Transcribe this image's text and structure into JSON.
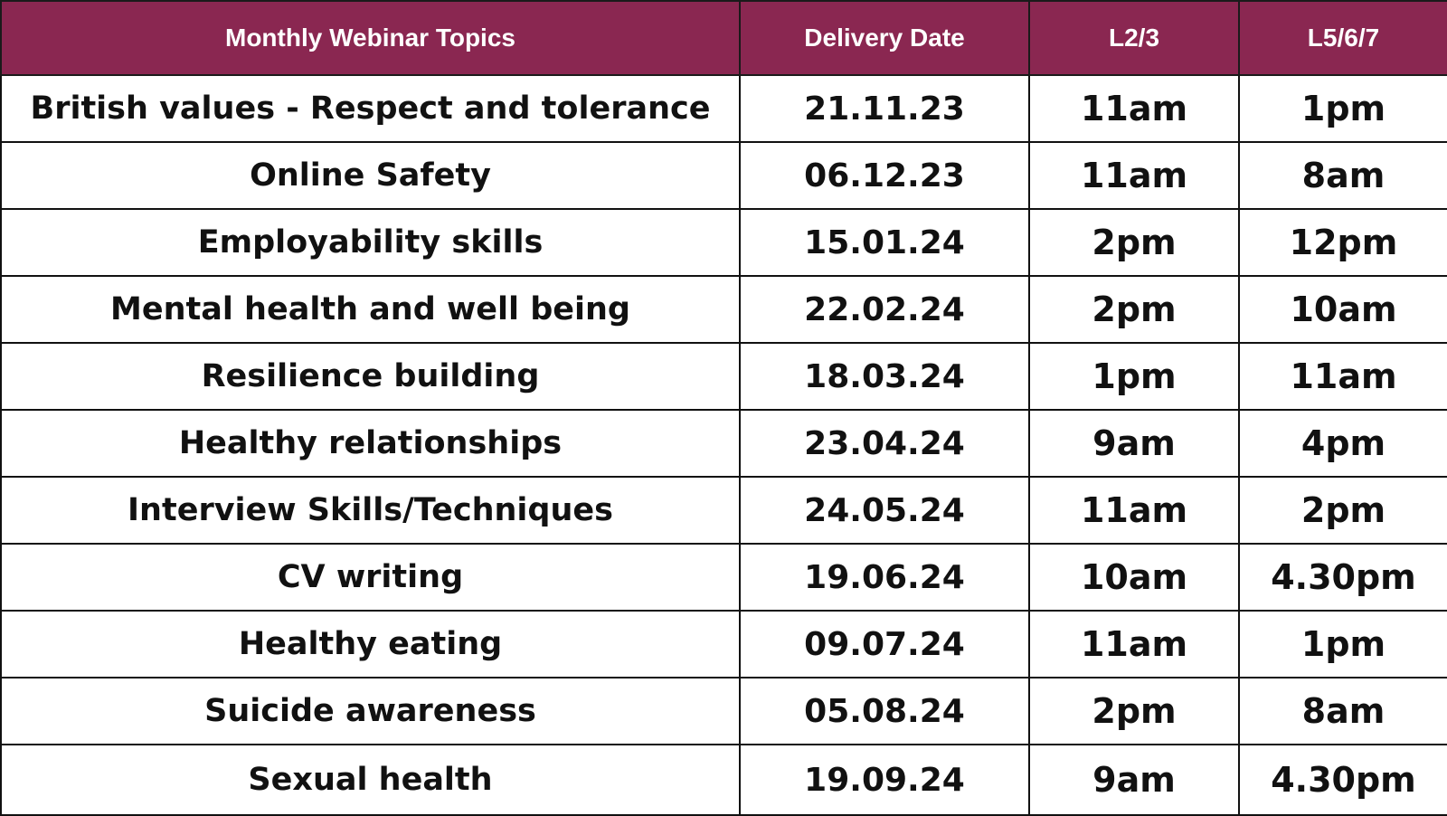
{
  "table": {
    "headers": [
      "Monthly Webinar Topics",
      "Delivery Date",
      "L2/3",
      "L5/6/7"
    ],
    "rows": [
      [
        "British values - Respect and tolerance",
        "21.11.23",
        "11am",
        "1pm"
      ],
      [
        "Online Safety",
        "06.12.23",
        "11am",
        "8am"
      ],
      [
        "Employability skills",
        "15.01.24",
        "2pm",
        "12pm"
      ],
      [
        "Mental health and well being",
        "22.02.24",
        "2pm",
        "10am"
      ],
      [
        "Resilience building",
        "18.03.24",
        "1pm",
        "11am"
      ],
      [
        "Healthy relationships",
        "23.04.24",
        "9am",
        "4pm"
      ],
      [
        "Interview Skills/Techniques",
        "24.05.24",
        "11am",
        "2pm"
      ],
      [
        "CV writing",
        "19.06.24",
        "10am",
        "4.30pm"
      ],
      [
        "Healthy eating",
        "09.07.24",
        "11am",
        "1pm"
      ],
      [
        "Suicide awareness",
        "05.08.24",
        "2pm",
        "8am"
      ],
      [
        "Sexual health",
        "19.09.24",
        "9am",
        "4.30pm"
      ]
    ]
  },
  "colors": {
    "header_background": "#8a2751",
    "header_text": "#ffffff",
    "border": "#111111",
    "body_text": "#111111"
  }
}
